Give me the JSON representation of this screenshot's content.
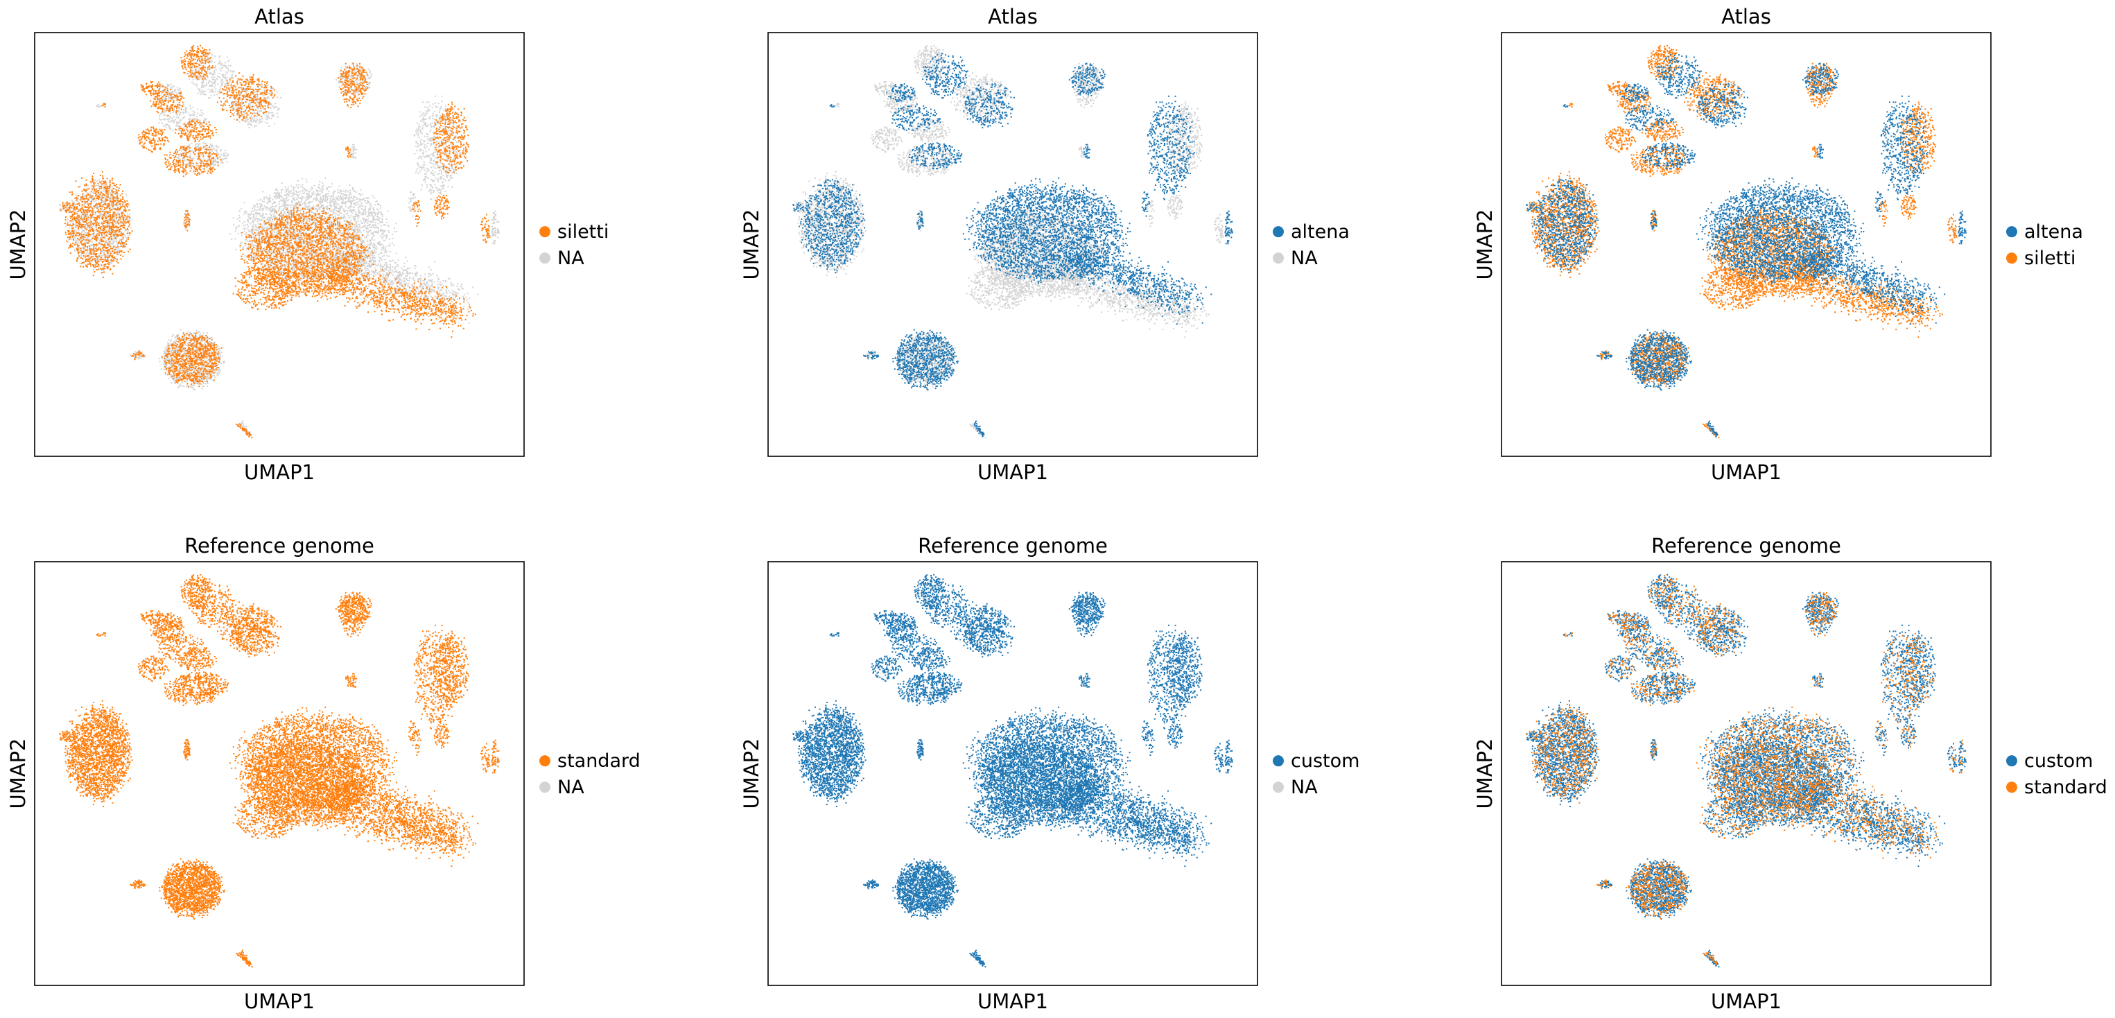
{
  "colors": {
    "blue": "#1f77b4",
    "orange": "#ff7f0e",
    "na": "#d3d3d3"
  },
  "chart_data": [
    {
      "type": "scatter",
      "title": "Atlas",
      "xlabel": "UMAP1",
      "ylabel": "UMAP2",
      "ticks": "none",
      "legend": {
        "placement": "right",
        "entries": [
          {
            "label": "siletti",
            "color": "#ff7f0e"
          },
          {
            "label": "NA",
            "color": "#d3d3d3"
          }
        ]
      },
      "highlight": "siletti"
    },
    {
      "type": "scatter",
      "title": "Atlas",
      "xlabel": "UMAP1",
      "ylabel": "UMAP2",
      "ticks": "none",
      "legend": {
        "placement": "right",
        "entries": [
          {
            "label": "altena",
            "color": "#1f77b4"
          },
          {
            "label": "NA",
            "color": "#d3d3d3"
          }
        ]
      },
      "highlight": "altena"
    },
    {
      "type": "scatter",
      "title": "Atlas",
      "xlabel": "UMAP1",
      "ylabel": "UMAP2",
      "ticks": "none",
      "legend": {
        "placement": "right",
        "entries": [
          {
            "label": "altena",
            "color": "#1f77b4"
          },
          {
            "label": "siletti",
            "color": "#ff7f0e"
          }
        ]
      },
      "highlight": "both"
    },
    {
      "type": "scatter",
      "title": "Reference genome",
      "xlabel": "UMAP1",
      "ylabel": "UMAP2",
      "ticks": "none",
      "legend": {
        "placement": "right",
        "entries": [
          {
            "label": "standard",
            "color": "#ff7f0e"
          },
          {
            "label": "NA",
            "color": "#d3d3d3"
          }
        ]
      },
      "highlight": "all-orange"
    },
    {
      "type": "scatter",
      "title": "Reference genome",
      "xlabel": "UMAP1",
      "ylabel": "UMAP2",
      "ticks": "none",
      "legend": {
        "placement": "right",
        "entries": [
          {
            "label": "custom",
            "color": "#1f77b4"
          },
          {
            "label": "NA",
            "color": "#d3d3d3"
          }
        ]
      },
      "highlight": "all-blue"
    },
    {
      "type": "scatter",
      "title": "Reference genome",
      "xlabel": "UMAP1",
      "ylabel": "UMAP2",
      "ticks": "none",
      "legend": {
        "placement": "right",
        "entries": [
          {
            "label": "custom",
            "color": "#1f77b4"
          },
          {
            "label": "standard",
            "color": "#ff7f0e"
          }
        ]
      },
      "highlight": "mixed"
    }
  ]
}
